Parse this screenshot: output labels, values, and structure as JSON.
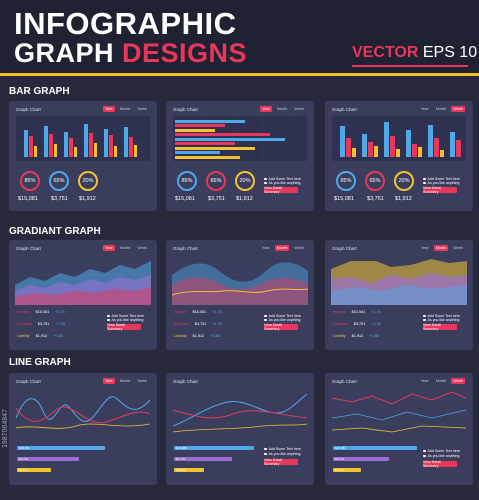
{
  "header": {
    "title_line1": "INFOGRAPHIC",
    "title_line2_a": "GRAPH",
    "title_line2_b": "DESIGNS",
    "vector": "VECTOR",
    "eps": "EPS 10"
  },
  "sections": {
    "bar": "BAR GRAPH",
    "gradient": "GRADIANT GRAPH",
    "line": "LINE GRAPH"
  },
  "card_common": {
    "title": "Graph Chart",
    "tabs": [
      "Year",
      "Month",
      "Week"
    ],
    "bullet1": "Add Some Text here",
    "bullet2": "As you like anything",
    "button": "View Detail Summary"
  },
  "bar_stats": {
    "pcts": [
      "85%",
      "65%",
      "20%"
    ],
    "values": [
      "$15,081",
      "$3,751",
      "$1,912"
    ]
  },
  "gradient_legend": [
    {
      "label": "Income",
      "value": "$15,081",
      "delta": "+1.76"
    },
    {
      "label": "Expense",
      "value": "$3,751",
      "delta": "+1.39"
    },
    {
      "label": "Liability",
      "value": "$1,912",
      "delta": "+0.88"
    }
  ],
  "line_bars": [
    "$15,081",
    "$3,751",
    "$1,912"
  ],
  "watermark": "1987064847",
  "colors": {
    "accent": "#e8375a",
    "blue": "#4fa8e8",
    "yellow": "#f2c233",
    "purple": "#9a6fd1",
    "card": "#3a3e5c"
  }
}
